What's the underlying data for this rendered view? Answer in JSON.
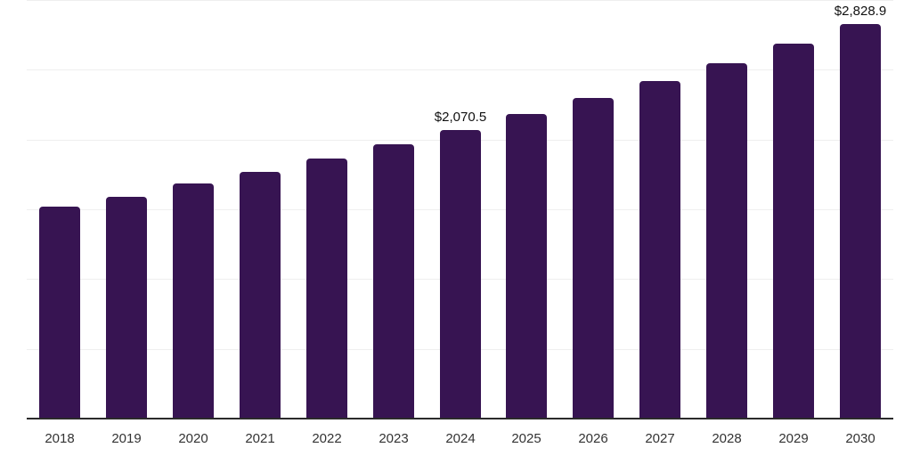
{
  "chart_data": {
    "type": "bar",
    "title": "",
    "xlabel": "",
    "ylabel": "",
    "categories": [
      "2018",
      "2019",
      "2020",
      "2021",
      "2022",
      "2023",
      "2024",
      "2025",
      "2026",
      "2027",
      "2028",
      "2029",
      "2030"
    ],
    "values": [
      1520,
      1592,
      1682,
      1771,
      1861,
      1963,
      2070.5,
      2181,
      2296,
      2418,
      2546,
      2686,
      2828.9
    ],
    "annotations": [
      {
        "category": "2024",
        "text": "$2,070.5"
      },
      {
        "category": "2030",
        "text": "$2,828.9"
      }
    ],
    "ylim": [
      0,
      3000
    ],
    "gridline_interval": 500,
    "grid": true,
    "legend_position": "none",
    "colors": {
      "bar": "#371452",
      "axis_line": "#2b2b2b",
      "gridline": "#efefef",
      "value_label": "#111111",
      "tick_label": "#333333",
      "background": "#ffffff"
    }
  }
}
